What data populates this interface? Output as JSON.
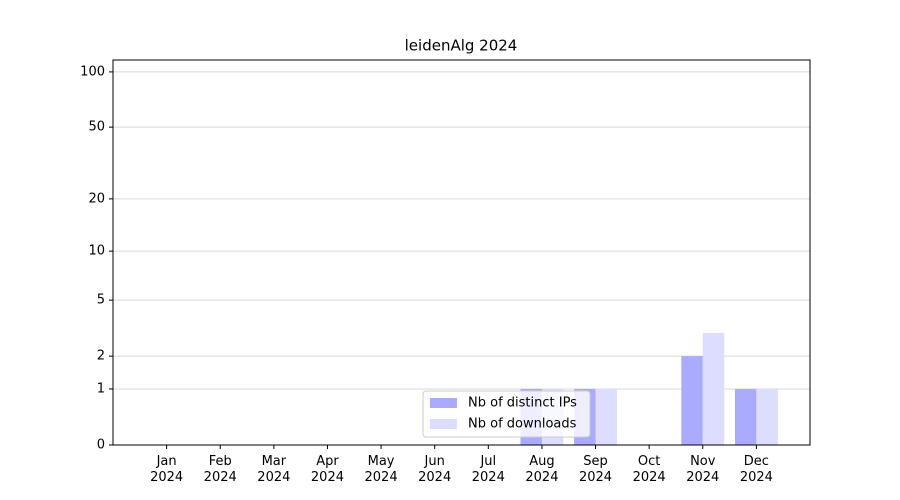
{
  "chart_data": {
    "type": "bar",
    "title": "leidenAlg 2024",
    "categories": [
      "Jan 2024",
      "Feb 2024",
      "Mar 2024",
      "Apr 2024",
      "May 2024",
      "Jun 2024",
      "Jul 2024",
      "Aug 2024",
      "Sep 2024",
      "Oct 2024",
      "Nov 2024",
      "Dec 2024"
    ],
    "series": [
      {
        "name": "Nb of distinct IPs",
        "color": "#aaaaff",
        "values": [
          0,
          0,
          0,
          0,
          0,
          0,
          0,
          1,
          1,
          0,
          2,
          1
        ]
      },
      {
        "name": "Nb of downloads",
        "color": "#ddddff",
        "values": [
          0,
          0,
          0,
          0,
          0,
          0,
          0,
          1,
          1,
          0,
          3,
          1
        ]
      }
    ],
    "yscale": "log1p",
    "ylim": [
      0,
      116
    ],
    "yticks": [
      0,
      1,
      2,
      5,
      10,
      20,
      50,
      100
    ],
    "grid": true,
    "legend": "lower center"
  }
}
